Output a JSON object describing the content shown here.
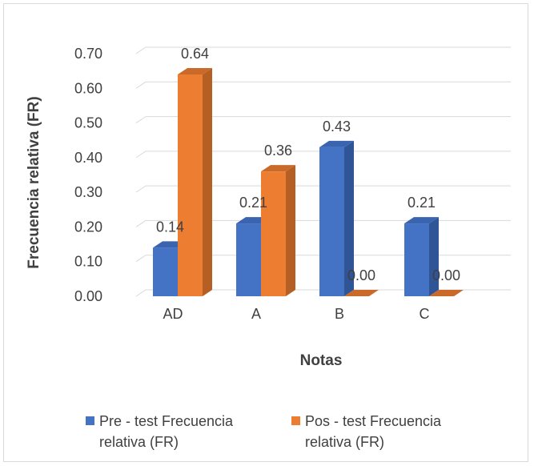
{
  "chart_data": {
    "type": "bar",
    "categories": [
      "AD",
      "A",
      "B",
      "C"
    ],
    "series": [
      {
        "name": "Pre - test Frecuencia relativa (FR)",
        "values": [
          0.14,
          0.21,
          0.43,
          0.21
        ],
        "labels": [
          "0.14",
          "0.21",
          "0.43",
          "0.21"
        ]
      },
      {
        "name": "Pos - test Frecuencia relativa (FR)",
        "values": [
          0.64,
          0.36,
          0.0,
          0.0
        ],
        "labels": [
          "0.64",
          "0.36",
          "0.00",
          "0.00"
        ]
      }
    ],
    "xlabel": "Notas",
    "ylabel": "Frecuencia relativa (FR)",
    "ylim": [
      0,
      0.7
    ],
    "yticks": [
      "0.00",
      "0.10",
      "0.20",
      "0.30",
      "0.40",
      "0.50",
      "0.60",
      "0.70"
    ],
    "grid": true,
    "legend": "bottom",
    "style": "3d-clustered-column"
  },
  "colors": {
    "pre_front": "#4472C4",
    "pre_side": "#2F5597",
    "pre_top": "#3A64B0",
    "pos_front": "#ED7D31",
    "pos_side": "#B65F24",
    "pos_top": "#C96A2A",
    "grid": "#d9d9d9",
    "text": "#404040"
  }
}
